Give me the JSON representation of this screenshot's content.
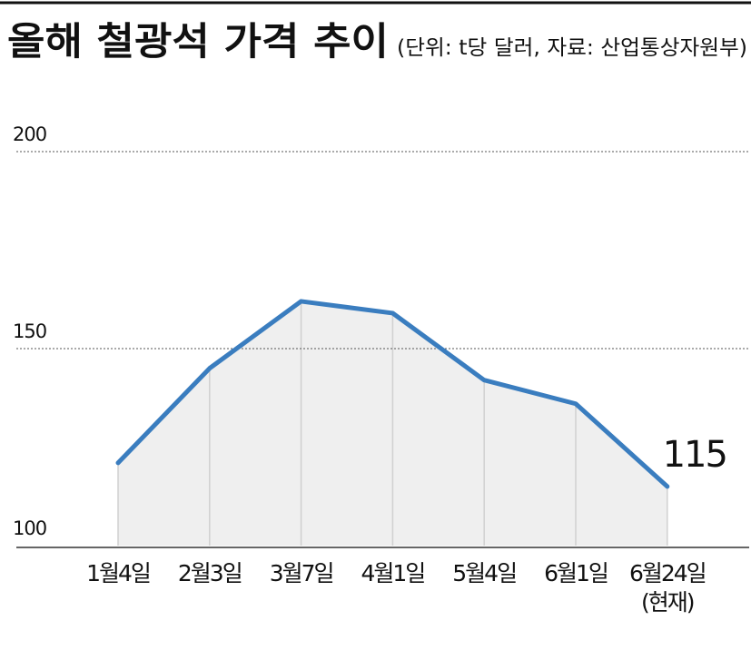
{
  "chart_data": {
    "type": "line",
    "title": "올해 철광석 가격 추이",
    "subtitle": "(단위: t당 달러, 자료: 산업통상자원부)",
    "categories": [
      "1월4일",
      "2월3일",
      "3월7일",
      "4월1일",
      "5월4일",
      "6월1일",
      "6월24일\n(현재)"
    ],
    "values": [
      121,
      145,
      162,
      159,
      142,
      136,
      115
    ],
    "color": "#3a7dbf",
    "area_color": "#efefef",
    "ylim": [
      100,
      200
    ],
    "yticks": [
      100,
      150,
      200
    ],
    "grid": true
  }
}
